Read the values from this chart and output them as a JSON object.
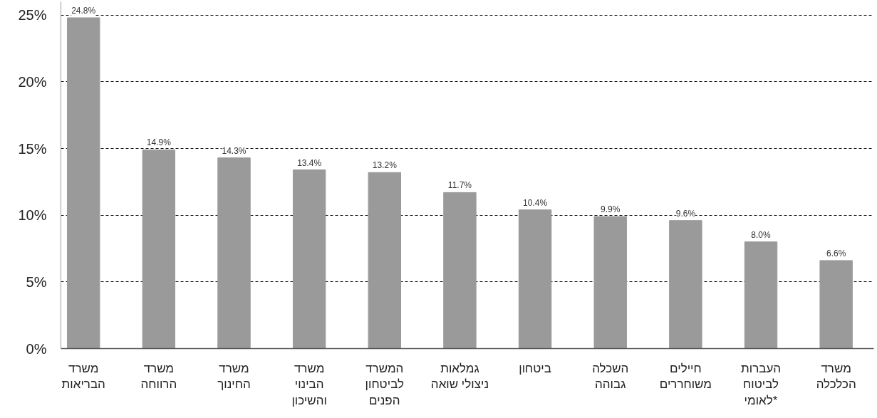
{
  "chart_data": {
    "type": "bar",
    "categories": [
      "משרד\nהבריאות",
      "משרד\nהרווחה",
      "משרד\nהחינוך",
      "משרד\nהבינוי\nוהשיכון",
      "המשרד\nלביטחון\nהפנים",
      "גמלאות\nניצולי שואה",
      "ביטחון",
      "השכלה\nגבוהה",
      "חיילים\nמשוחררים",
      "העברות\nלביטוח\nלאומי*",
      "משרד\nהכלכלה"
    ],
    "values": [
      24.8,
      14.9,
      14.3,
      13.4,
      13.2,
      11.7,
      10.4,
      9.9,
      9.6,
      8.0,
      6.6
    ],
    "value_labels": [
      "24.8%",
      "14.9%",
      "14.3%",
      "13.4%",
      "13.2%",
      "11.7%",
      "10.4%",
      "9.9%",
      "9.6%",
      "8.0%",
      "6.6%"
    ],
    "color": "#9a9a9a",
    "ylim": [
      0,
      26
    ],
    "yticks": [
      {
        "value": 0,
        "label": "0%"
      },
      {
        "value": 5,
        "label": "5%"
      },
      {
        "value": 10,
        "label": "10%"
      },
      {
        "value": 15,
        "label": "15%"
      },
      {
        "value": 20,
        "label": "20%"
      },
      {
        "value": 25,
        "label": "25%"
      }
    ],
    "grid": "y"
  }
}
